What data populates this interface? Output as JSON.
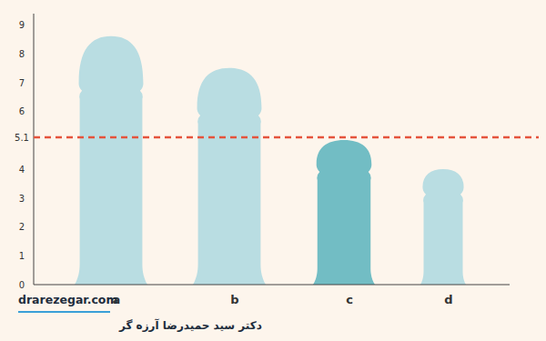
{
  "chart_data": {
    "type": "bar",
    "categories": [
      "a",
      "b",
      "c",
      "d"
    ],
    "values": [
      8.6,
      7.5,
      5.0,
      4.0
    ],
    "colors": [
      "#b9dde2",
      "#b9dde2",
      "#72bdc4",
      "#b9dde2"
    ],
    "ylim": [
      0,
      9
    ],
    "yticks": [
      0,
      1,
      2,
      3,
      4,
      5.1,
      6,
      7,
      8,
      9
    ],
    "threshold": 5.1,
    "grid": false,
    "source": "drarezegar.com",
    "author": "دکتر سید حمیدرضا آرزه گر"
  }
}
